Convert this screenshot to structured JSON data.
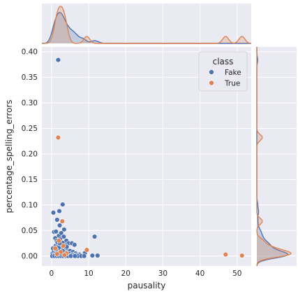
{
  "chart_data": {
    "type": "scatter",
    "xlabel": "pausality",
    "ylabel": "percentage_spelling_errors",
    "xlim": [
      -2.6,
      53.8
    ],
    "ylim": [
      -0.0195,
      0.4095
    ],
    "x_ticks": [
      0,
      10,
      20,
      30,
      40,
      50
    ],
    "y_ticks": [
      0.0,
      0.05,
      0.1,
      0.15,
      0.2,
      0.25,
      0.3,
      0.35,
      0.4
    ],
    "x_tick_labels": [
      "0",
      "10",
      "20",
      "30",
      "40",
      "50"
    ],
    "y_tick_labels": [
      "0.00",
      "0.05",
      "0.10",
      "0.15",
      "0.20",
      "0.25",
      "0.30",
      "0.35",
      "0.40"
    ],
    "grid": true,
    "legend": {
      "title": "class",
      "placement": "top-right",
      "entries": [
        {
          "label": "Fake",
          "color": "#4c72b0"
        },
        {
          "label": "True",
          "color": "#dd8452"
        }
      ]
    },
    "series": [
      {
        "name": "Fake",
        "color": "#4c72b0",
        "points": [
          [
            1.8,
            0.384
          ],
          [
            0.5,
            0.085
          ],
          [
            2.1,
            0.088
          ],
          [
            3.0,
            0.101
          ],
          [
            1.5,
            0.071
          ],
          [
            0.7,
            0.047
          ],
          [
            1.2,
            0.048
          ],
          [
            2.2,
            0.06
          ],
          [
            3.4,
            0.052
          ],
          [
            1.0,
            0.035
          ],
          [
            1.4,
            0.03
          ],
          [
            2.0,
            0.04
          ],
          [
            2.6,
            0.045
          ],
          [
            3.3,
            0.038
          ],
          [
            4.0,
            0.03
          ],
          [
            4.6,
            0.025
          ],
          [
            5.5,
            0.025
          ],
          [
            6.2,
            0.022
          ],
          [
            1.1,
            0.02
          ],
          [
            1.8,
            0.022
          ],
          [
            2.4,
            0.018
          ],
          [
            2.9,
            0.02
          ],
          [
            3.6,
            0.015
          ],
          [
            4.3,
            0.012
          ],
          [
            5.0,
            0.01
          ],
          [
            5.8,
            0.008
          ],
          [
            6.5,
            0.005
          ],
          [
            7.5,
            0.003
          ],
          [
            8.3,
            0.001
          ],
          [
            9.0,
            0.006
          ],
          [
            0.3,
            0.005
          ],
          [
            0.6,
            0.01
          ],
          [
            0.9,
            0.003
          ],
          [
            1.3,
            0.008
          ],
          [
            1.7,
            0.012
          ],
          [
            2.1,
            0.004
          ],
          [
            2.5,
            0.009
          ],
          [
            2.8,
            0.001
          ],
          [
            3.1,
            0.006
          ],
          [
            3.5,
            0.003
          ],
          [
            3.9,
            0.007
          ],
          [
            4.4,
            0.002
          ],
          [
            4.8,
            0.004
          ],
          [
            5.3,
            0.001
          ],
          [
            5.7,
            0.003
          ],
          [
            6.0,
            0.001
          ],
          [
            6.8,
            0.002
          ],
          [
            7.1,
            0.0
          ],
          [
            8.0,
            0.0
          ],
          [
            8.8,
            0.0
          ],
          [
            0.2,
            0.0
          ],
          [
            0.8,
            0.0
          ],
          [
            1.4,
            0.0
          ],
          [
            2.0,
            0.0
          ],
          [
            2.6,
            0.0
          ],
          [
            3.2,
            0.0
          ],
          [
            3.8,
            0.0
          ],
          [
            4.5,
            0.0
          ],
          [
            5.2,
            0.0
          ],
          [
            6.3,
            0.0
          ],
          [
            11.0,
            0.001
          ],
          [
            11.6,
            0.038
          ],
          [
            12.4,
            0.001
          ],
          [
            1.6,
            0.027
          ],
          [
            2.3,
            0.033
          ],
          [
            3.0,
            0.026
          ],
          [
            3.8,
            0.021
          ],
          [
            0.4,
            0.015
          ],
          [
            2.7,
            0.014
          ],
          [
            4.1,
            0.018
          ],
          [
            1.9,
            0.016
          ],
          [
            2.2,
            0.025
          ],
          [
            1.2,
            0.013
          ],
          [
            2.4,
            0.005
          ],
          [
            3.0,
            0.01
          ]
        ]
      },
      {
        "name": "True",
        "color": "#dd8452",
        "points": [
          [
            1.8,
            0.232
          ],
          [
            2.9,
            0.068
          ],
          [
            9.5,
            0.012
          ],
          [
            46.9,
            0.003
          ],
          [
            51.3,
            0.001
          ],
          [
            1.0,
            0.015
          ],
          [
            2.0,
            0.03
          ],
          [
            3.2,
            0.02
          ],
          [
            2.5,
            0.008
          ],
          [
            4.0,
            0.005
          ],
          [
            1.5,
            0.004
          ],
          [
            3.5,
            0.002
          ]
        ]
      }
    ],
    "marginal_x": {
      "type": "kde",
      "series": [
        {
          "name": "Fake",
          "peak_x": 2.5,
          "color": "#4c72b0"
        },
        {
          "name": "True",
          "peak_x": 3.2,
          "color": "#dd8452"
        }
      ]
    },
    "marginal_y": {
      "type": "kde",
      "series": [
        {
          "name": "Fake",
          "peak_y": 0.012,
          "color": "#4c72b0"
        },
        {
          "name": "True",
          "peak_y": 0.002,
          "color": "#dd8452"
        }
      ]
    }
  }
}
